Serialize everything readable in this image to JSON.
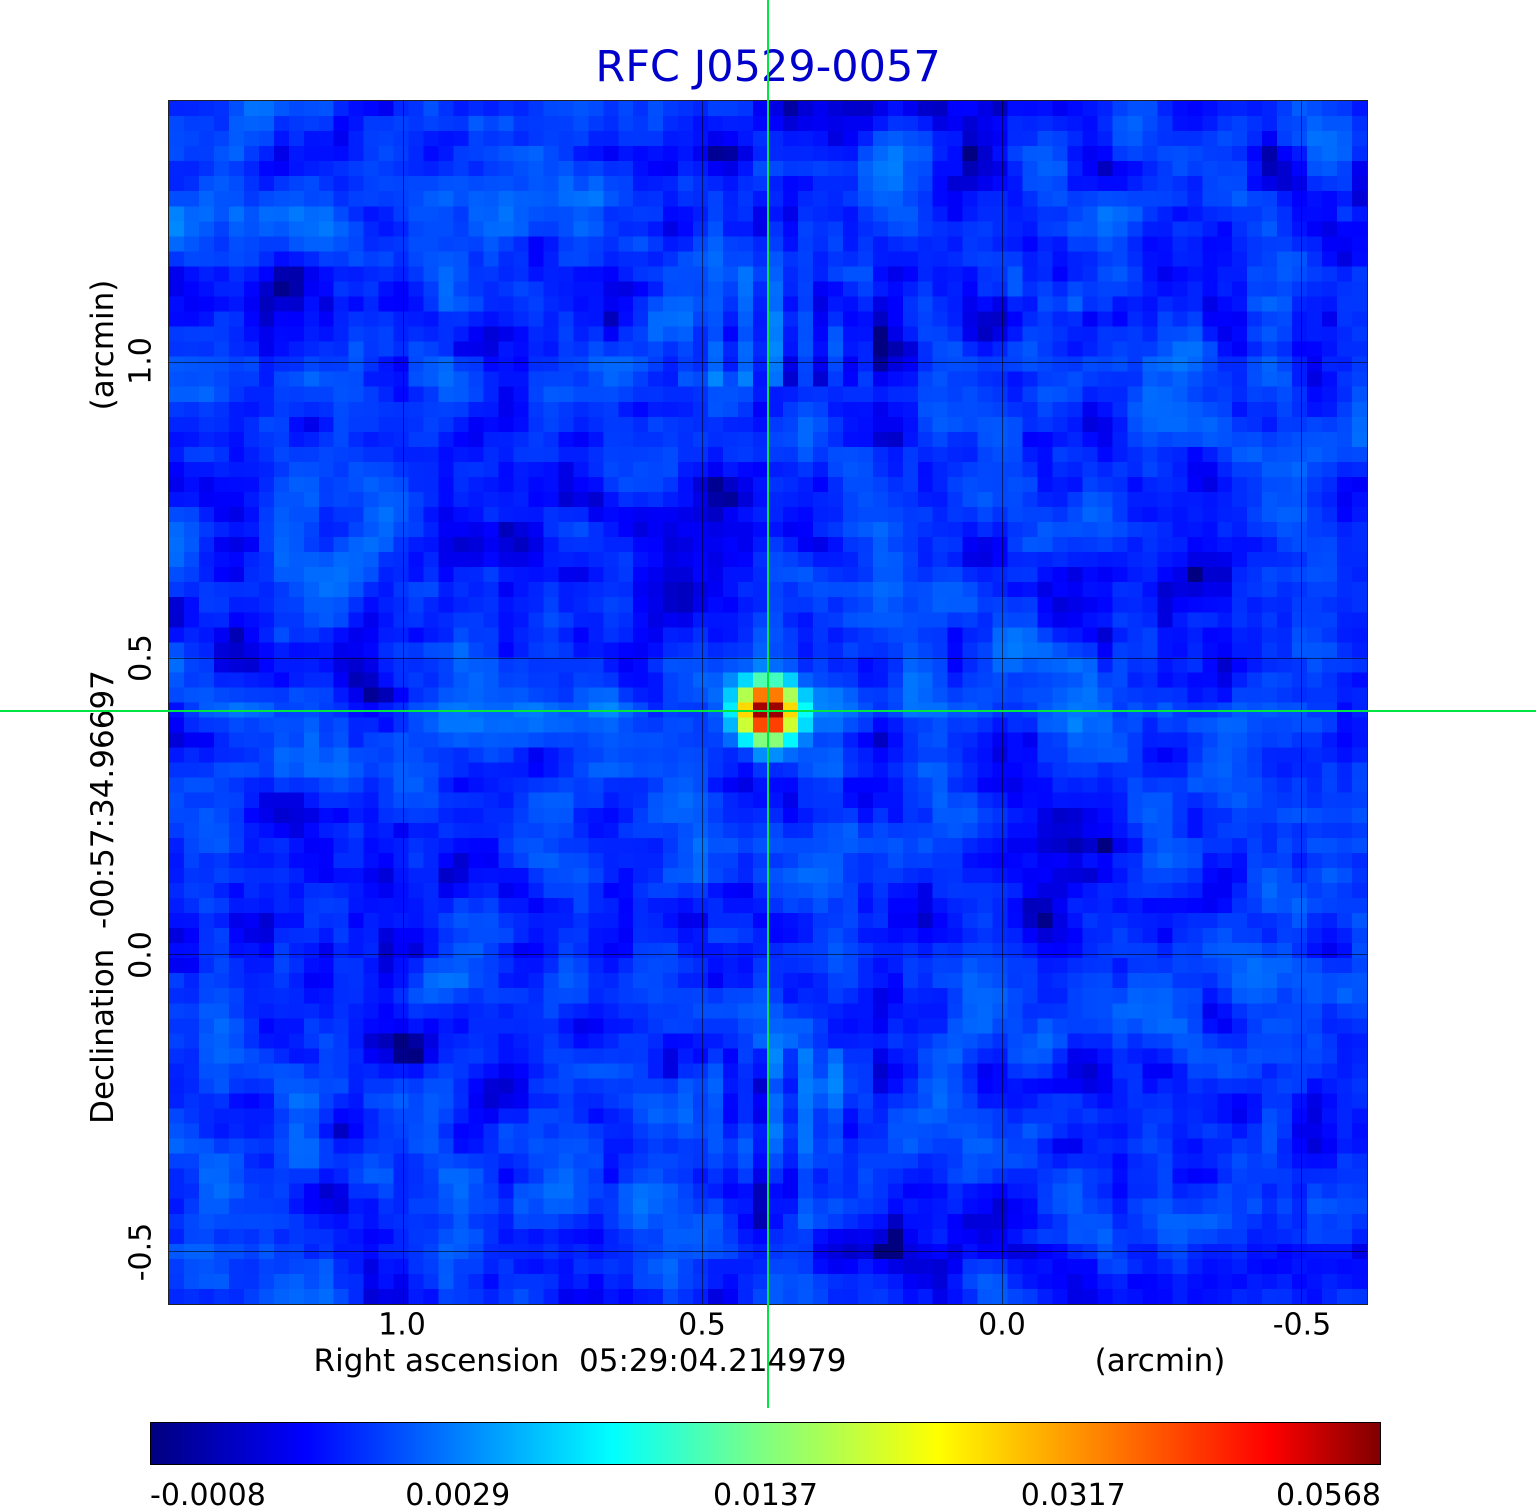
{
  "title": "RFC J0529-0057",
  "chart_data": {
    "type": "heatmap",
    "title": "RFC J0529-0057",
    "title_color": "#0000cd",
    "xlabel": "Right ascension  05:29:04.214979",
    "xunit": "(arcmin)",
    "ylabel": "Declination  -00:57:34.96697",
    "yunit": "(arcmin)",
    "x_ticks": [
      1.0,
      0.5,
      0.0,
      -0.5
    ],
    "x_tick_labels": [
      "1.0",
      "0.5",
      "0.0",
      "-0.5"
    ],
    "y_ticks": [
      1.0,
      0.5,
      0.0,
      -0.5
    ],
    "y_tick_labels": [
      "1.0",
      "0.5",
      "0.0",
      "-0.5"
    ],
    "x_range": [
      1.39,
      -0.61
    ],
    "y_range": [
      1.44,
      -0.59
    ],
    "grid": true,
    "grid_color": "rgba(0,0,0,0.55)",
    "source": {
      "ra_arcmin": 0.39,
      "dec_arcmin": 0.41,
      "peak": 0.0568,
      "sigma_arcmin": 0.028
    },
    "crosshair": {
      "ra_arcmin": 0.39,
      "dec_arcmin": 0.41,
      "color": "#00e544"
    },
    "noise": {
      "mean": 0.0009,
      "sigma": 0.00085,
      "seed": 20529,
      "cells": 80
    },
    "colorbar": {
      "vmin": -0.0008,
      "vmax": 0.0568,
      "scale": "sqrt",
      "colormap": "jet",
      "ticks": [
        -0.0008,
        0.0029,
        0.0137,
        0.0317,
        0.0568
      ],
      "tick_labels": [
        "-0.0008",
        "0.0029",
        "0.0137",
        "0.0317",
        "0.0568"
      ],
      "stops": [
        {
          "t": 0.0,
          "c": "#000080"
        },
        {
          "t": 0.125,
          "c": "#0000ff"
        },
        {
          "t": 0.375,
          "c": "#00ffff"
        },
        {
          "t": 0.5,
          "c": "#80ff80"
        },
        {
          "t": 0.64,
          "c": "#ffff00"
        },
        {
          "t": 0.91,
          "c": "#ff0000"
        },
        {
          "t": 1.0,
          "c": "#800000"
        }
      ]
    }
  }
}
